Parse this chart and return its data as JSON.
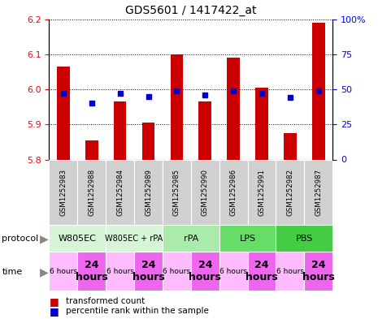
{
  "title": "GDS5601 / 1417422_at",
  "samples": [
    "GSM1252983",
    "GSM1252988",
    "GSM1252984",
    "GSM1252989",
    "GSM1252985",
    "GSM1252990",
    "GSM1252986",
    "GSM1252991",
    "GSM1252982",
    "GSM1252987"
  ],
  "transformed_counts": [
    6.065,
    5.855,
    5.965,
    5.905,
    6.1,
    5.965,
    6.09,
    6.005,
    5.875,
    6.19
  ],
  "percentile_ranks": [
    47,
    40,
    47,
    45,
    49,
    46,
    49,
    47,
    44,
    49
  ],
  "ylim": [
    5.8,
    6.2
  ],
  "yticks": [
    5.8,
    5.9,
    6.0,
    6.1,
    6.2
  ],
  "y2ticks": [
    0,
    25,
    50,
    75,
    100
  ],
  "y2labels": [
    "0",
    "25",
    "50",
    "75",
    "100%"
  ],
  "protocols": [
    {
      "label": "W805EC",
      "start": 0,
      "end": 2,
      "color": "#d6f5d6"
    },
    {
      "label": "W805EC + rPA",
      "start": 2,
      "end": 4,
      "color": "#d6f5d6"
    },
    {
      "label": "rPA",
      "start": 4,
      "end": 6,
      "color": "#aaeaaa"
    },
    {
      "label": "LPS",
      "start": 6,
      "end": 8,
      "color": "#66dd66"
    },
    {
      "label": "PBS",
      "start": 8,
      "end": 10,
      "color": "#44cc44"
    }
  ],
  "times": [
    {
      "label": "6 hours",
      "col": 0,
      "color": "#ffbbff",
      "fontsize": 6.5,
      "bold": false
    },
    {
      "label": "24\nhours",
      "col": 1,
      "color": "#ee66ee",
      "fontsize": 9,
      "bold": true
    },
    {
      "label": "6 hours",
      "col": 2,
      "color": "#ffbbff",
      "fontsize": 6.5,
      "bold": false
    },
    {
      "label": "24\nhours",
      "col": 3,
      "color": "#ee66ee",
      "fontsize": 9,
      "bold": true
    },
    {
      "label": "6 hours",
      "col": 4,
      "color": "#ffbbff",
      "fontsize": 6.5,
      "bold": false
    },
    {
      "label": "24\nhours",
      "col": 5,
      "color": "#ee66ee",
      "fontsize": 9,
      "bold": true
    },
    {
      "label": "6 hours",
      "col": 6,
      "color": "#ffbbff",
      "fontsize": 6.5,
      "bold": false
    },
    {
      "label": "24\nhours",
      "col": 7,
      "color": "#ee66ee",
      "fontsize": 9,
      "bold": true
    },
    {
      "label": "6 hours",
      "col": 8,
      "color": "#ffbbff",
      "fontsize": 6.5,
      "bold": false
    },
    {
      "label": "24\nhours",
      "col": 9,
      "color": "#ee66ee",
      "fontsize": 9,
      "bold": true
    }
  ],
  "bar_color": "#cc0000",
  "dot_color": "#0000cc",
  "bar_bottom": 5.8,
  "bar_width": 0.45,
  "sample_bg_color": "#d0d0d0",
  "sample_border_color": "#ffffff",
  "plot_bg": "#ffffff",
  "left_label_color": "#888888"
}
